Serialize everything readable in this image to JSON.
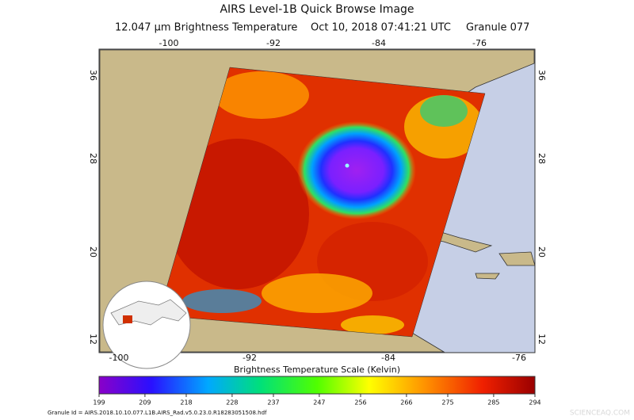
{
  "header": {
    "title": "AIRS Level-1B Quick Browse Image",
    "subtitle": [
      "12.047 μm Brightness Temperature",
      "Oct 10, 2018 07:41:21 UTC",
      "Granule 077"
    ]
  },
  "map": {
    "lon_labels": [
      -100,
      -92,
      -84,
      -76
    ],
    "lat_labels": [
      36,
      28,
      20,
      12
    ]
  },
  "colorbar": {
    "title": "Brightness Temperature Scale (Kelvin)",
    "lim": [
      199,
      294
    ],
    "ticks": [
      199,
      209,
      218,
      228,
      237,
      247,
      256,
      266,
      275,
      285,
      294
    ]
  },
  "footer": {
    "granule_id": "Granule Id = AIRS.2018.10.10.077.L1B.AIRS_Rad.v5.0.23.0.R18283051508.hdf",
    "watermark": "SCIENCEAQ.COM"
  }
}
